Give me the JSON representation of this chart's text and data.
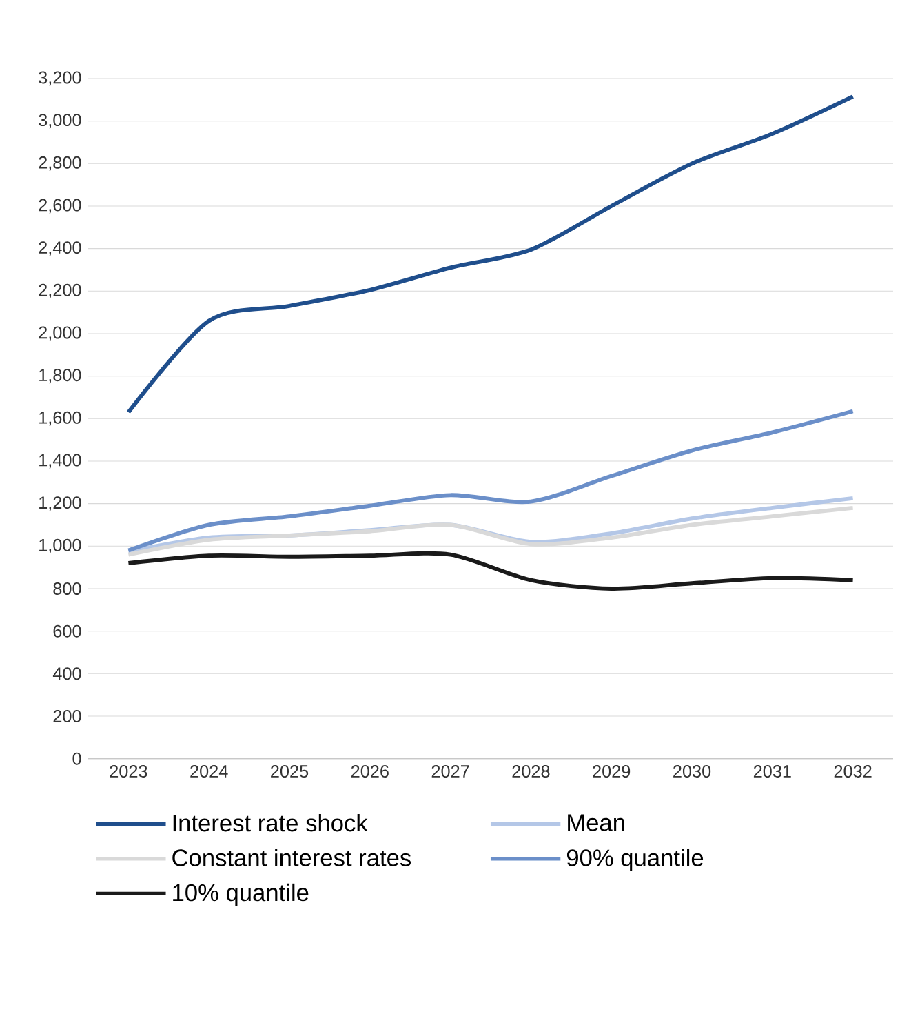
{
  "chart_data": {
    "type": "line",
    "categories": [
      "2023",
      "2024",
      "2025",
      "2026",
      "2027",
      "2028",
      "2029",
      "2030",
      "2031",
      "2032"
    ],
    "series": [
      {
        "name": "Interest rate shock",
        "color": "#1f4e8c",
        "values": [
          1630,
          2060,
          2130,
          2205,
          2310,
          2395,
          2600,
          2800,
          2940,
          3115
        ]
      },
      {
        "name": "Mean",
        "color": "#b4c7e7",
        "values": [
          975,
          1040,
          1050,
          1075,
          1100,
          1020,
          1060,
          1130,
          1180,
          1225
        ]
      },
      {
        "name": "Constant interest rates",
        "color": "#d9d9d9",
        "values": [
          960,
          1030,
          1050,
          1070,
          1100,
          1010,
          1040,
          1100,
          1140,
          1180
        ]
      },
      {
        "name": "90% quantile",
        "color": "#6b8fc9",
        "values": [
          980,
          1100,
          1140,
          1190,
          1240,
          1210,
          1330,
          1450,
          1535,
          1635
        ]
      },
      {
        "name": "10% quantile",
        "color": "#1a1a1a",
        "values": [
          920,
          955,
          950,
          955,
          960,
          840,
          800,
          825,
          850,
          840
        ]
      }
    ],
    "ylim": [
      0,
      3200
    ],
    "yticks": [
      0,
      200,
      400,
      600,
      800,
      {
        "value": 1000,
        "label": "1,000"
      },
      {
        "value": 1200,
        "label": "1,200"
      },
      {
        "value": 1400,
        "label": "1,400"
      },
      {
        "value": 1600,
        "label": "1,600"
      },
      {
        "value": 1800,
        "label": "1,800"
      },
      {
        "value": 2000,
        "label": "2,000"
      },
      {
        "value": 2200,
        "label": "2,200"
      },
      {
        "value": 2400,
        "label": "2,400"
      },
      {
        "value": 2600,
        "label": "2,600"
      },
      {
        "value": 2800,
        "label": "2,800"
      },
      {
        "value": 3000,
        "label": "3,000"
      },
      {
        "value": 3200,
        "label": "3,200"
      }
    ],
    "grid": "y",
    "legend": "bottom",
    "marker": "none",
    "line_style": "solid"
  }
}
